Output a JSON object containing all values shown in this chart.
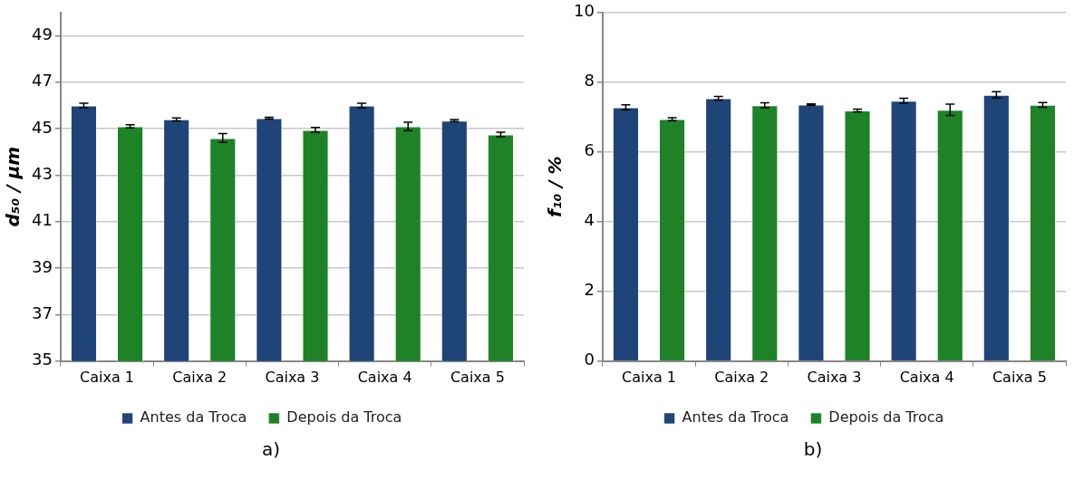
{
  "chart_data": [
    {
      "type": "bar",
      "ylabel": "d₅₀ / µm",
      "categories": [
        "Caixa 1",
        "Caixa 2",
        "Caixa 3",
        "Caixa 4",
        "Caixa 5"
      ],
      "ylim": [
        35,
        50
      ],
      "yticks": [
        35,
        37,
        39,
        41,
        43,
        45,
        47,
        49
      ],
      "grid": "y",
      "legend": "bottom",
      "annotations": [
        "a)"
      ],
      "series": [
        {
          "name": "Antes da Troca",
          "color": "#1f4477",
          "values": [
            46.0,
            45.4,
            45.45,
            46.0,
            45.35
          ],
          "errors": [
            0.1,
            0.06,
            0.04,
            0.1,
            0.04
          ]
        },
        {
          "name": "Depois da Troca",
          "color": "#1e8227",
          "values": [
            45.1,
            44.6,
            44.95,
            45.1,
            44.75
          ],
          "errors": [
            0.07,
            0.19,
            0.1,
            0.18,
            0.1
          ]
        }
      ]
    },
    {
      "type": "bar",
      "ylabel": "f₁₀ / %",
      "categories": [
        "Caixa 1",
        "Caixa 2",
        "Caixa 3",
        "Caixa 4",
        "Caixa 5"
      ],
      "ylim": [
        0,
        10
      ],
      "yticks": [
        0,
        2,
        4,
        6,
        8,
        10
      ],
      "grid": "y",
      "legend": "bottom",
      "annotations": [
        "b)"
      ],
      "series": [
        {
          "name": "Antes da Troca",
          "color": "#1f4477",
          "values": [
            7.28,
            7.54,
            7.36,
            7.47,
            7.64
          ],
          "errors": [
            0.07,
            0.05,
            0.02,
            0.07,
            0.09
          ]
        },
        {
          "name": "Depois da Troca",
          "color": "#1e8227",
          "values": [
            6.94,
            7.34,
            7.19,
            7.21,
            7.35
          ],
          "errors": [
            0.04,
            0.07,
            0.04,
            0.16,
            0.07
          ]
        }
      ]
    }
  ]
}
